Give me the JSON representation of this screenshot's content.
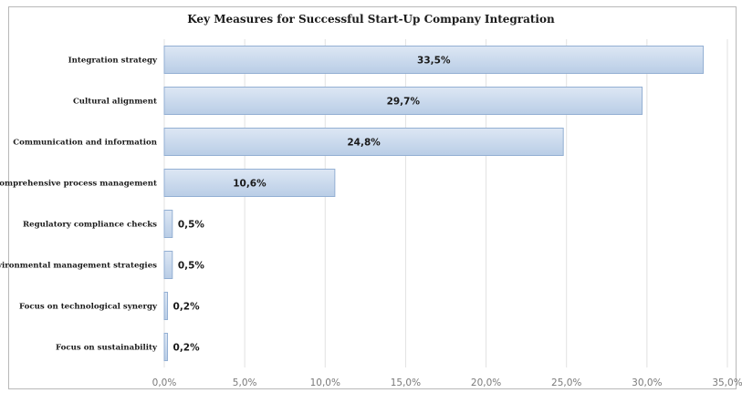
{
  "chart_data": {
    "type": "bar",
    "orientation": "horizontal",
    "title": "Key Measures for Successful Start-Up Company Integration",
    "categories": [
      "Integration strategy",
      "Cultural alignment",
      "Communication and information",
      "Comprehensive process management",
      "Regulatory compliance checks",
      "Environmental management strategies",
      "Focus on technological synergy",
      "Focus on sustainability"
    ],
    "values": [
      33.5,
      29.7,
      24.8,
      10.6,
      0.5,
      0.5,
      0.2,
      0.2
    ],
    "value_labels": [
      "33,5%",
      "29,7%",
      "24,8%",
      "10,6%",
      "0,5%",
      "0,5%",
      "0,2%",
      "0,2%"
    ],
    "xlim": [
      0,
      35
    ],
    "xticks": [
      0,
      5,
      10,
      15,
      20,
      25,
      30,
      35
    ],
    "xtick_labels": [
      "0,0%",
      "5,0%",
      "10,0%",
      "15,0%",
      "20,0%",
      "25,0%",
      "30,0%",
      "35,0%"
    ],
    "grid": "vertical",
    "colors": {
      "bar_fill_top": "#dde7f4",
      "bar_fill_bottom": "#b9cde6",
      "bar_stroke": "#93afd3",
      "grid": "#e2e2e2"
    }
  }
}
